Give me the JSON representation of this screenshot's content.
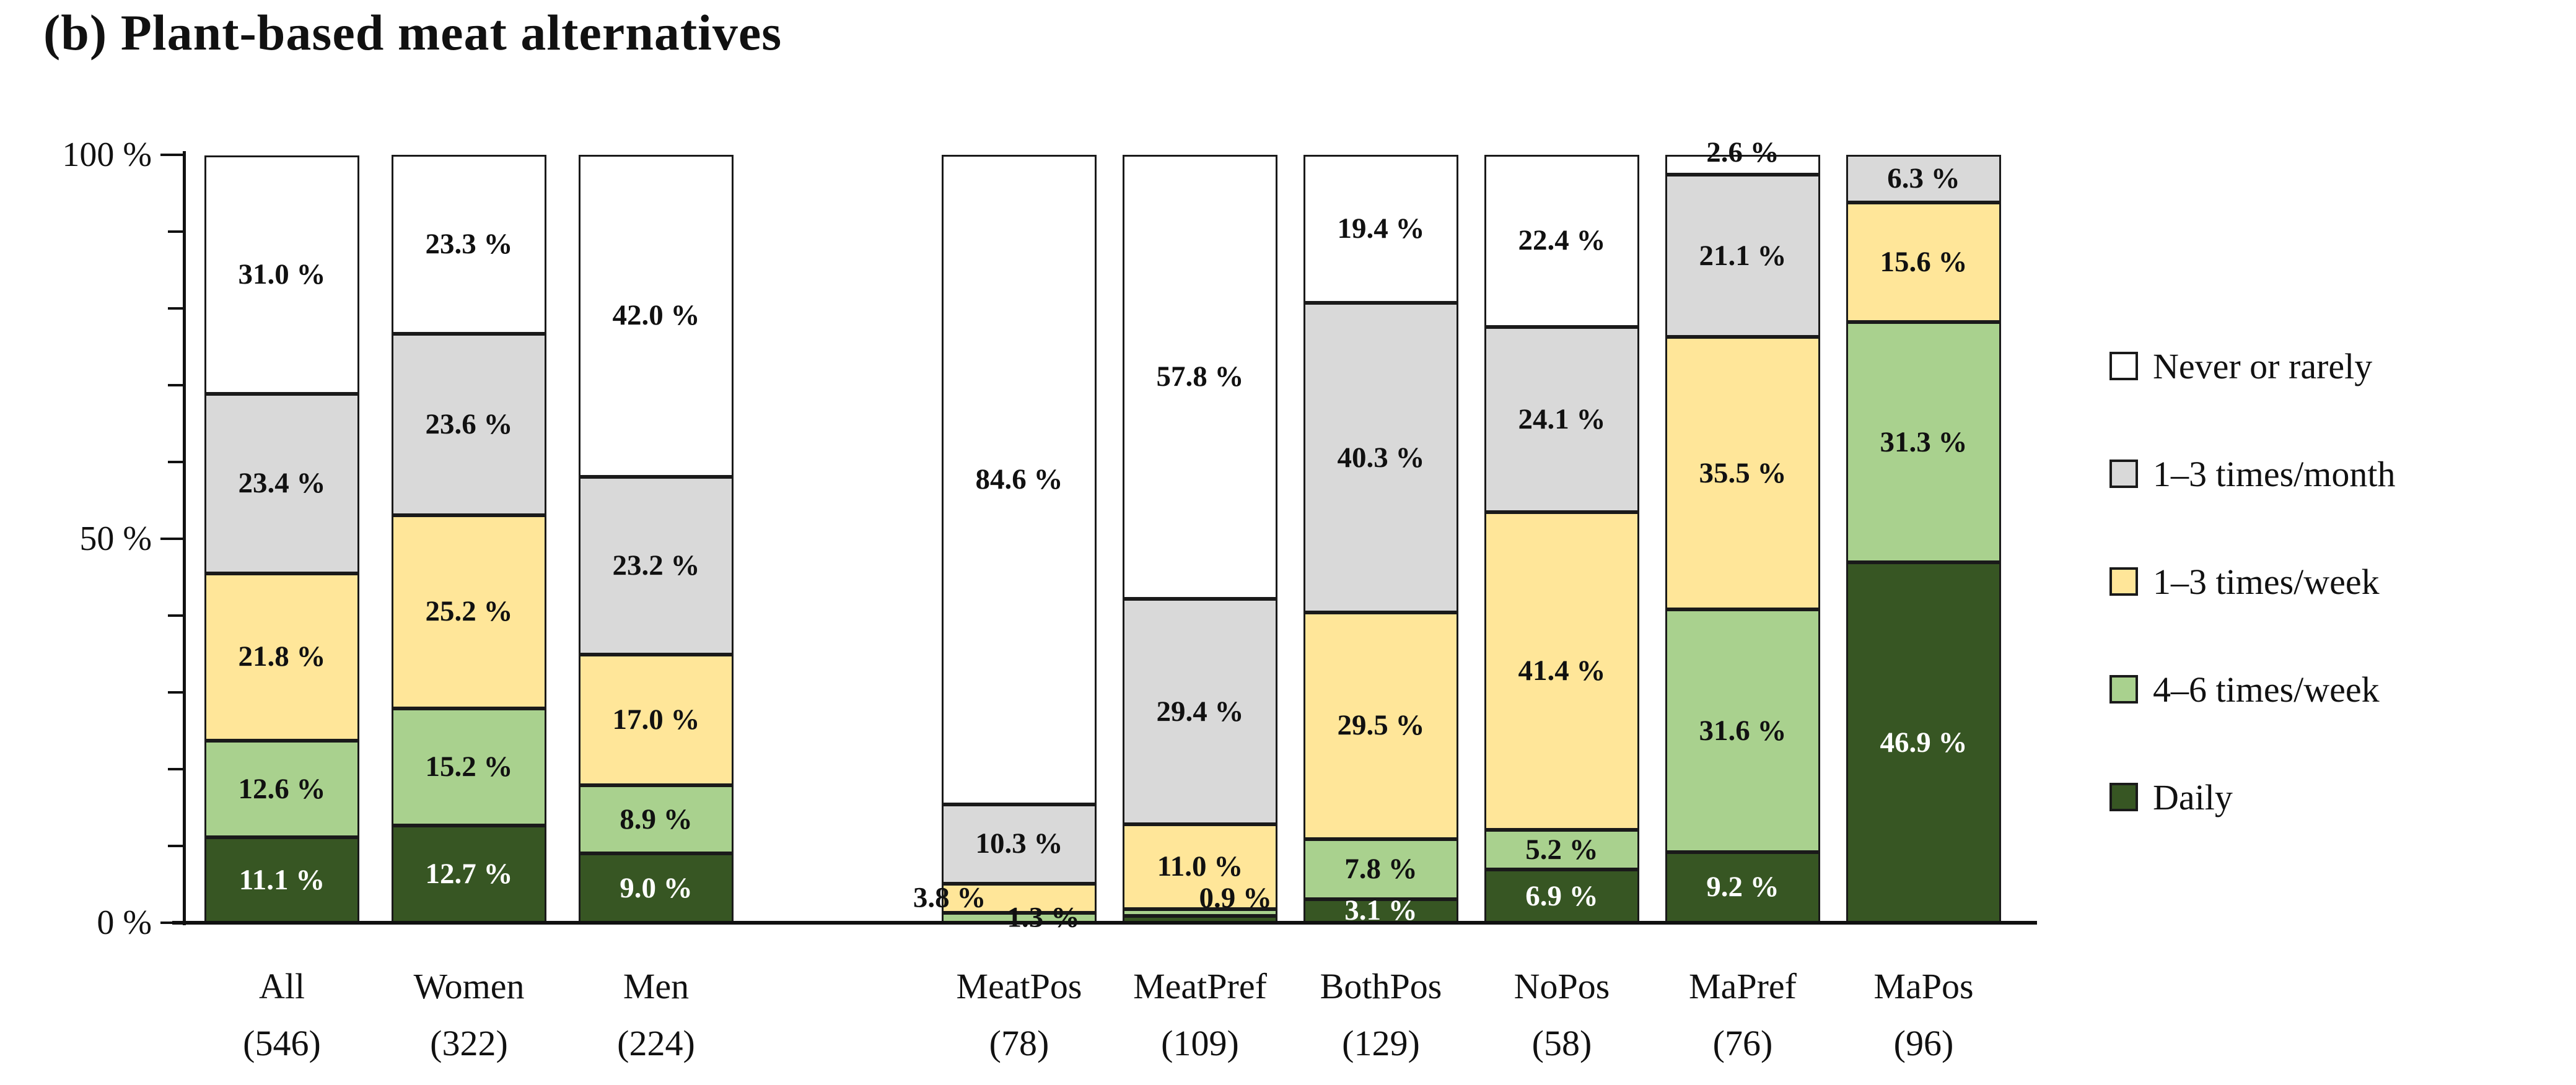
{
  "title": "(b) Plant-based meat alternatives",
  "y_axis": {
    "labels": [
      {
        "text": "100 %",
        "value": 100
      },
      {
        "text": "50 %",
        "value": 50
      },
      {
        "text": "0 %",
        "value": 0
      }
    ],
    "minor_tick_step": 10
  },
  "chart_data": {
    "type": "bar",
    "subtype": "stacked-100-percent",
    "title": "(b) Plant-based meat alternatives",
    "ylim": [
      0,
      100
    ],
    "grid": false,
    "legend_position": "right",
    "categories": [
      "All",
      "Women",
      "Men",
      "MeatPos",
      "MeatPref",
      "BothPos",
      "NoPos",
      "MaPref",
      "MaPos"
    ],
    "category_n": [
      "(546)",
      "(322)",
      "(224)",
      "(78)",
      "(109)",
      "(129)",
      "(58)",
      "(76)",
      "(96)"
    ],
    "group_break_after_index": 2,
    "series": [
      {
        "name": "Never or rarely",
        "color": "#FFFFFF",
        "values": [
          31.0,
          23.3,
          42.0,
          84.6,
          57.8,
          19.4,
          22.4,
          2.6,
          0
        ],
        "labels": [
          "31.0 %",
          "23.3 %",
          "42.0 %",
          "84.6 %",
          "57.8 %",
          "19.4 %",
          "22.4 %",
          "2.6 %",
          ""
        ],
        "label_styles": [
          "",
          "",
          "",
          "",
          "",
          "",
          "",
          "top-out",
          ""
        ]
      },
      {
        "name": "1–3 times/month",
        "color": "#D9D9D9",
        "values": [
          23.4,
          23.6,
          23.2,
          10.3,
          29.4,
          40.3,
          24.1,
          21.1,
          6.3
        ],
        "labels": [
          "23.4 %",
          "23.6 %",
          "23.2 %",
          "10.3 %",
          "29.4 %",
          "40.3 %",
          "24.1 %",
          "21.1 %",
          "6.3 %"
        ],
        "label_styles": [
          "",
          "",
          "",
          "",
          "",
          "",
          "",
          "",
          ""
        ]
      },
      {
        "name": "1–3 times/week",
        "color": "#FFE699",
        "values": [
          21.8,
          25.2,
          17.0,
          3.8,
          11.0,
          29.5,
          41.4,
          35.5,
          15.6
        ],
        "labels": [
          "21.8 %",
          "25.2 %",
          "17.0 %",
          "3.8 %",
          "11.0 %",
          "29.5 %",
          "41.4 %",
          "35.5 %",
          "15.6 %"
        ],
        "label_styles": [
          "",
          "",
          "",
          "out-left",
          "",
          "",
          "",
          "",
          ""
        ]
      },
      {
        "name": "4–6 times/week",
        "color": "#A9D18E",
        "values": [
          12.6,
          15.2,
          8.9,
          1.3,
          0.9,
          7.8,
          5.2,
          31.6,
          31.3
        ],
        "labels": [
          "12.6 %",
          "15.2 %",
          "8.9 %",
          "1.3 %",
          "0.9 %",
          "7.8 %",
          "5.2 %",
          "31.6 %",
          "31.3 %"
        ],
        "label_styles": [
          "",
          "",
          "",
          "below-right",
          "low-right",
          "",
          "",
          "",
          ""
        ]
      },
      {
        "name": "Daily",
        "color": "#375623",
        "values": [
          11.1,
          12.7,
          9.0,
          0,
          0.9,
          3.1,
          6.9,
          9.2,
          46.9
        ],
        "labels": [
          "11.1 %",
          "12.7 %",
          "9.0 %",
          "",
          "",
          "3.1 %",
          "6.9 %",
          "9.2 %",
          "46.9 %"
        ],
        "label_styles": [
          "white",
          "white",
          "white",
          "",
          "",
          "white",
          "white",
          "white",
          "white"
        ]
      }
    ]
  },
  "legend": [
    {
      "label": "Never or rarely",
      "color": "#FFFFFF"
    },
    {
      "label": "1–3 times/month",
      "color": "#D9D9D9"
    },
    {
      "label": "1–3 times/week",
      "color": "#FFE699"
    },
    {
      "label": "4–6 times/week",
      "color": "#A9D18E"
    },
    {
      "label": "Daily",
      "color": "#375623"
    }
  ]
}
